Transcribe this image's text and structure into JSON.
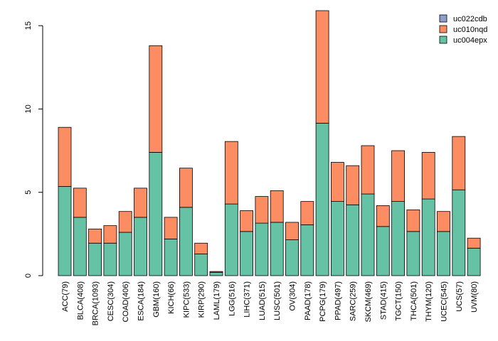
{
  "chart_data": {
    "type": "bar",
    "stacked": true,
    "title": "",
    "xlabel": "",
    "ylabel": "",
    "ylim": [
      0,
      16
    ],
    "yticks": [
      0,
      5,
      10,
      15
    ],
    "grid": false,
    "legend_position": "top-right",
    "categories": [
      "ACC(79)",
      "BLCA(408)",
      "BRCA(1093)",
      "CESC(304)",
      "COAD(406)",
      "ESCA(184)",
      "GBM(160)",
      "KICH(66)",
      "KIPC(533)",
      "KIRP(290)",
      "LAML(179)",
      "LGG(516)",
      "LIHC(371)",
      "LUAD(515)",
      "LUSC(501)",
      "OV(304)",
      "PAAD(178)",
      "PCPG(179)",
      "PPAD(497)",
      "SARC(259)",
      "SKCM(469)",
      "STAD(415)",
      "TGCT(150)",
      "THCA(501)",
      "THYM(120)",
      "UCEC(545)",
      "UCS(57)",
      "UVM(80)"
    ],
    "series": [
      {
        "name": "uc004epx",
        "color": "#66c2a5",
        "values": [
          5.35,
          3.5,
          1.95,
          1.95,
          2.6,
          3.5,
          7.4,
          2.2,
          4.1,
          1.3,
          0.2,
          4.3,
          2.65,
          3.15,
          3.2,
          2.15,
          3.05,
          9.15,
          4.45,
          4.25,
          4.9,
          2.95,
          4.45,
          2.65,
          4.6,
          2.65,
          5.15,
          1.65
        ]
      },
      {
        "name": "uc010nqd",
        "color": "#fc8d62",
        "values": [
          3.55,
          1.75,
          0.85,
          1.05,
          1.25,
          1.75,
          6.4,
          1.3,
          2.35,
          0.65,
          0.05,
          3.75,
          1.25,
          1.6,
          1.9,
          1.05,
          1.4,
          6.75,
          2.35,
          2.35,
          2.9,
          1.25,
          3.05,
          1.3,
          2.8,
          1.2,
          3.2,
          0.6
        ]
      },
      {
        "name": "uc022cdb",
        "color": "#8da0cb",
        "values": [
          0,
          0,
          0,
          0,
          0,
          0,
          0,
          0,
          0,
          0,
          0,
          0,
          0,
          0,
          0,
          0,
          0,
          0,
          0,
          0,
          0,
          0,
          0,
          0,
          0,
          0,
          0,
          0
        ]
      }
    ],
    "legend_order": [
      "uc022cdb",
      "uc010nqd",
      "uc004epx"
    ]
  }
}
